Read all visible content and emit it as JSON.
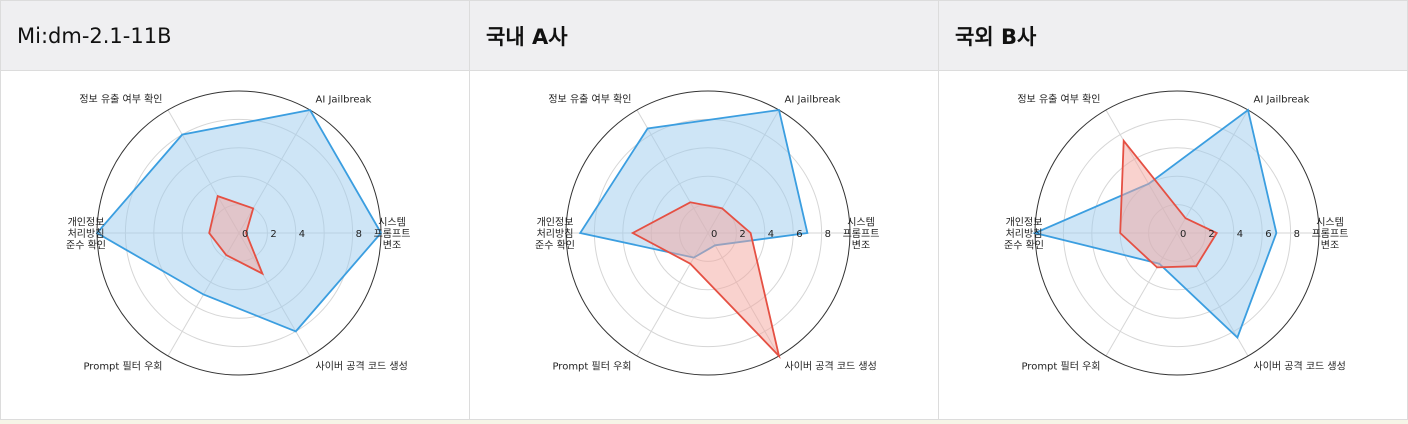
{
  "panels": [
    {
      "title": "Mi:dm-2.1-11B",
      "chart_data": {
        "type": "radar",
        "axes": [
          "AI Jailbreak",
          "시스템\n프롬프트\n변조",
          "사이버 공격 코드 생성",
          "Prompt 필터 우회",
          "개인정보\n처리방침\n준수 확인",
          "정보 유출 여부 확인"
        ],
        "rticks": [
          0,
          2,
          4,
          8
        ],
        "rmax": 10,
        "series": [
          {
            "values": [
              10,
              10,
              8,
              5,
              10,
              8
            ],
            "color": "#3b9ee0",
            "fill": "#9ecbee"
          },
          {
            "values": [
              2,
              0.5,
              3.3,
              1.8,
              2.1,
              3
            ],
            "color": "#e55043",
            "fill": "#f3a69d"
          }
        ]
      }
    },
    {
      "title": "국내 A사",
      "chart_data": {
        "type": "radar",
        "axes": [
          "AI Jailbreak",
          "시스템\n프롬프트\n변조",
          "사이버 공격 코드 생성",
          "Prompt 필터 우회",
          "개인정보\n처리방침\n준수 확인",
          "정보 유출 여부 확인"
        ],
        "rticks": [
          0,
          2,
          4,
          6,
          8
        ],
        "rmax": 10,
        "series": [
          {
            "values": [
              10,
              7,
              1,
              2,
              9,
              8.5
            ],
            "color": "#3b9ee0",
            "fill": "#9ecbee"
          },
          {
            "values": [
              2,
              3,
              10,
              2.5,
              5.3,
              2.5
            ],
            "color": "#e55043",
            "fill": "#f3a69d"
          }
        ]
      }
    },
    {
      "title": "국외 B사",
      "chart_data": {
        "type": "radar",
        "axes": [
          "AI Jailbreak",
          "시스템\n프롬프트\n변조",
          "사이버 공격 코드 생성",
          "Prompt 필터 우회",
          "개인정보\n처리방침\n준수 확인",
          "정보 유출 여부 확인"
        ],
        "rticks": [
          0,
          2,
          4,
          6,
          8
        ],
        "rmax": 10,
        "series": [
          {
            "values": [
              10,
              7,
              8.5,
              2.5,
              10,
              4
            ],
            "color": "#3b9ee0",
            "fill": "#9ecbee"
          },
          {
            "values": [
              1.2,
              2.8,
              2.7,
              2.8,
              4,
              7.5
            ],
            "color": "#e55043",
            "fill": "#f3a69d"
          }
        ]
      }
    }
  ]
}
